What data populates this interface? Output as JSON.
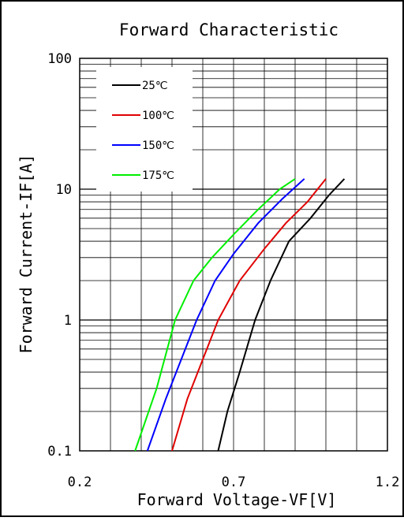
{
  "chart_data": {
    "type": "line",
    "title": "Forward Characteristic",
    "xlabel": "Forward Voltage-VF[V]",
    "ylabel": "Forward Current-IF[A]",
    "xlim": [
      0.2,
      1.2
    ],
    "ylim": [
      0.1,
      100
    ],
    "yscale": "log",
    "grid": true,
    "legend_position": "top-left",
    "x_ticks": [
      0.2,
      0.7,
      1.2
    ],
    "x_tick_labels": [
      "0.2",
      "0.7",
      "1.2"
    ],
    "y_ticks": [
      0.1,
      1,
      10,
      100
    ],
    "y_tick_labels": [
      "0.1",
      "1",
      "10",
      "100"
    ],
    "series": [
      {
        "name": "25℃",
        "color": "#000000",
        "points": [
          [
            0.65,
            0.1
          ],
          [
            0.68,
            0.2
          ],
          [
            0.72,
            0.4
          ],
          [
            0.77,
            1.0
          ],
          [
            0.82,
            2.0
          ],
          [
            0.88,
            4.0
          ],
          [
            0.95,
            6.0
          ],
          [
            1.01,
            9.0
          ],
          [
            1.06,
            12.0
          ]
        ]
      },
      {
        "name": "100℃",
        "color": "#e00000",
        "points": [
          [
            0.5,
            0.1
          ],
          [
            0.55,
            0.25
          ],
          [
            0.6,
            0.5
          ],
          [
            0.65,
            1.0
          ],
          [
            0.72,
            2.0
          ],
          [
            0.8,
            3.5
          ],
          [
            0.87,
            5.5
          ],
          [
            0.94,
            8.0
          ],
          [
            1.0,
            12.0
          ]
        ]
      },
      {
        "name": "150℃",
        "color": "#0000ff",
        "points": [
          [
            0.42,
            0.1
          ],
          [
            0.48,
            0.25
          ],
          [
            0.53,
            0.5
          ],
          [
            0.58,
            1.0
          ],
          [
            0.64,
            2.0
          ],
          [
            0.7,
            3.2
          ],
          [
            0.78,
            5.5
          ],
          [
            0.86,
            8.5
          ],
          [
            0.93,
            12.0
          ]
        ]
      },
      {
        "name": "175℃",
        "color": "#00ee00",
        "points": [
          [
            0.38,
            0.1
          ],
          [
            0.45,
            0.3
          ],
          [
            0.51,
            1.0
          ],
          [
            0.57,
            2.0
          ],
          [
            0.63,
            3.0
          ],
          [
            0.7,
            4.5
          ],
          [
            0.78,
            7.0
          ],
          [
            0.85,
            10.0
          ],
          [
            0.9,
            12.0
          ]
        ]
      }
    ]
  }
}
